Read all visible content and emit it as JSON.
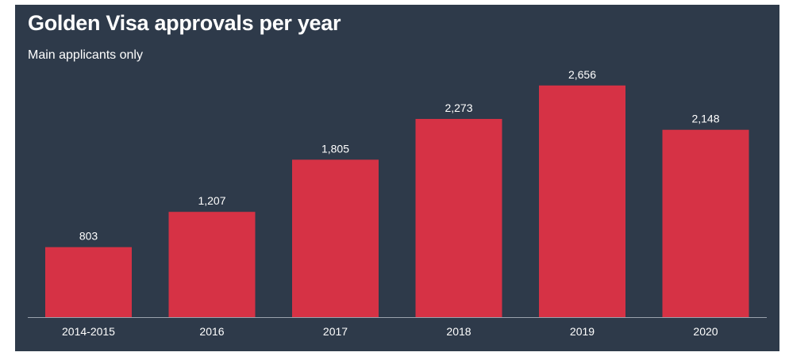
{
  "title": "Golden Visa approvals per year",
  "subtitle": "Main applicants only",
  "colors": {
    "background": "#2e3a4a",
    "bar": "#d63245",
    "axis": "#9aa3ad",
    "text": "#ffffff"
  },
  "chart_data": {
    "type": "bar",
    "title": "Golden Visa approvals per year",
    "subtitle": "Main applicants only",
    "xlabel": "",
    "ylabel": "",
    "categories": [
      "2014-2015",
      "2016",
      "2017",
      "2018",
      "2019",
      "2020"
    ],
    "values": [
      803,
      1207,
      1805,
      2273,
      2656,
      2148
    ],
    "value_labels": [
      "803",
      "1,207",
      "1,805",
      "2,273",
      "2,656",
      "2,148"
    ],
    "ylim": [
      0,
      2800
    ],
    "grid": false,
    "legend": "none"
  }
}
